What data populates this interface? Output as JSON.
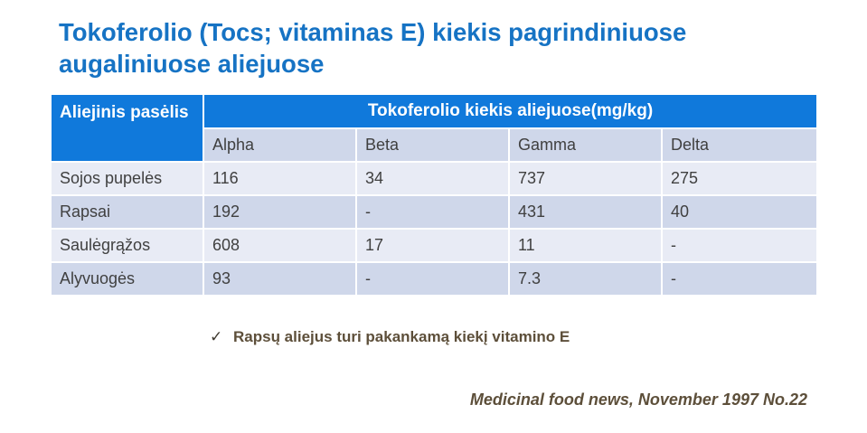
{
  "title": "Tokoferolio (Tocs; vitaminas E) kiekis pagrindiniuose augaliniuose aliejuose",
  "table": {
    "crop_header": "Aliejinis pasėlis",
    "group_header": "Tokoferolio kiekis aliejuose(mg/kg)",
    "subheaders": [
      "Alpha",
      "Beta",
      "Gamma",
      "Delta"
    ],
    "rows": [
      {
        "crop": "Sojos pupelės",
        "values": [
          "116",
          "34",
          "737",
          "275"
        ]
      },
      {
        "crop": "Rapsai",
        "values": [
          "192",
          "-",
          "431",
          "40"
        ]
      },
      {
        "crop": "Saulėgrąžos",
        "values": [
          "608",
          "17",
          "11",
          "-"
        ]
      },
      {
        "crop": "Alyvuogės",
        "values": [
          "93",
          "-",
          "7.3",
          "-"
        ]
      }
    ]
  },
  "note": {
    "icon": "checkmark-icon",
    "text": "Rapsų aliejus turi pakankamą kiekį vitamino E"
  },
  "source": "Medicinal food news, November 1997 No.22",
  "colors": {
    "title": "#1673c4",
    "header_bg": "#1079db",
    "row_dark": "#cfd7ea",
    "row_light": "#e8ebf5",
    "note_text": "#5d4f3a"
  }
}
